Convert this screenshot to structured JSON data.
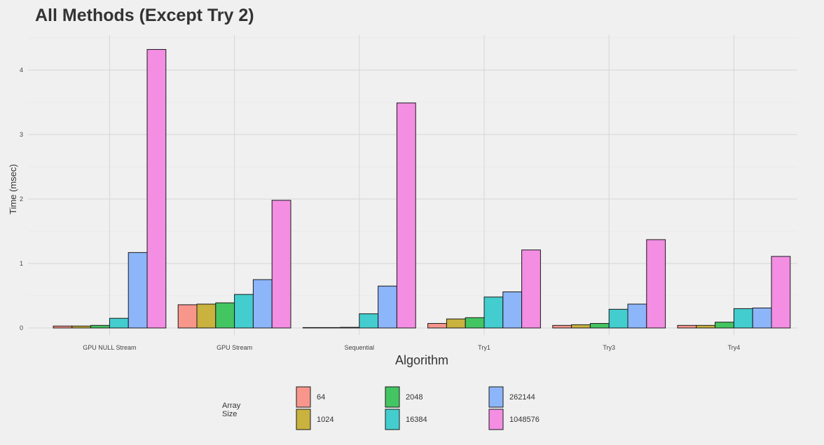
{
  "chart_data": {
    "type": "bar",
    "title": "All Methods (Except Try 2)",
    "xlabel": "Algorithm",
    "ylabel": "Time (msec)",
    "ylim": [
      0,
      4.5
    ],
    "yticks": [
      0,
      1,
      2,
      3,
      4
    ],
    "grid": true,
    "legend_title_lines": [
      "Array",
      "Size"
    ],
    "legend_position": "bottom",
    "categories": [
      "GPU NULL Stream",
      "GPU Stream",
      "Sequential",
      "Try1",
      "Try3",
      "Try4"
    ],
    "series": [
      {
        "name": "64",
        "color": "#f8968c",
        "values": [
          0.03,
          0.36,
          0.0,
          0.07,
          0.04,
          0.04
        ]
      },
      {
        "name": "1024",
        "color": "#c9b23e",
        "values": [
          0.03,
          0.37,
          0.005,
          0.14,
          0.05,
          0.04
        ]
      },
      {
        "name": "2048",
        "color": "#43c562",
        "values": [
          0.04,
          0.39,
          0.01,
          0.16,
          0.07,
          0.09
        ]
      },
      {
        "name": "16384",
        "color": "#44cdcf",
        "values": [
          0.15,
          0.52,
          0.22,
          0.48,
          0.29,
          0.3
        ]
      },
      {
        "name": "262144",
        "color": "#8cb5fa",
        "values": [
          1.17,
          0.75,
          0.65,
          0.56,
          0.37,
          0.31
        ]
      },
      {
        "name": "1048576",
        "color": "#f38ee3",
        "values": [
          4.32,
          1.98,
          3.49,
          1.21,
          1.37,
          1.11
        ]
      }
    ]
  }
}
